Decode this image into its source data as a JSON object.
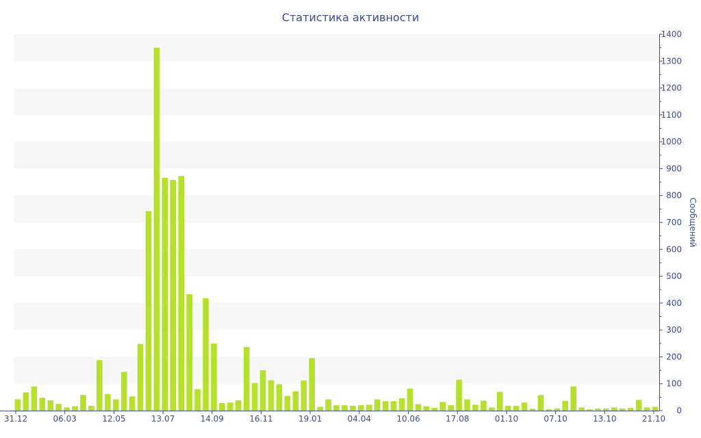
{
  "chart_data": {
    "type": "bar",
    "title": "Статистика активности",
    "ylabel": "Сообщений",
    "xlabel": "",
    "ylim": [
      0,
      1400
    ],
    "y_ticks": [
      0,
      100,
      200,
      300,
      400,
      500,
      600,
      700,
      800,
      900,
      1000,
      1100,
      1200,
      1300,
      1400
    ],
    "x_tick_labels": [
      "31.12",
      "06.03",
      "12.05",
      "13.07",
      "14.09",
      "16.11",
      "19.01",
      "04.04",
      "10.06",
      "17.08",
      "01.10",
      "07.10",
      "13.10",
      "21.10"
    ],
    "y_axis_position": "right",
    "grid": true,
    "values": [
      42,
      68,
      90,
      48,
      38,
      25,
      12,
      16,
      58,
      18,
      188,
      62,
      42,
      144,
      53,
      248,
      742,
      1350,
      866,
      858,
      873,
      433,
      80,
      418,
      250,
      28,
      30,
      38,
      237,
      103,
      150,
      113,
      98,
      55,
      72,
      112,
      195,
      14,
      42,
      20,
      20,
      18,
      20,
      22,
      42,
      35,
      35,
      46,
      82,
      24,
      16,
      10,
      32,
      20,
      115,
      42,
      22,
      37,
      12,
      70,
      18,
      18,
      30,
      7,
      58,
      5,
      8,
      36,
      90,
      12,
      5,
      8,
      8,
      12,
      8,
      10,
      40,
      12,
      14
    ],
    "colors": {
      "bar": "#b5e02e",
      "band": "#f7f7f7",
      "axis": "#3b4a8c",
      "text": "#3b4a8c"
    }
  }
}
